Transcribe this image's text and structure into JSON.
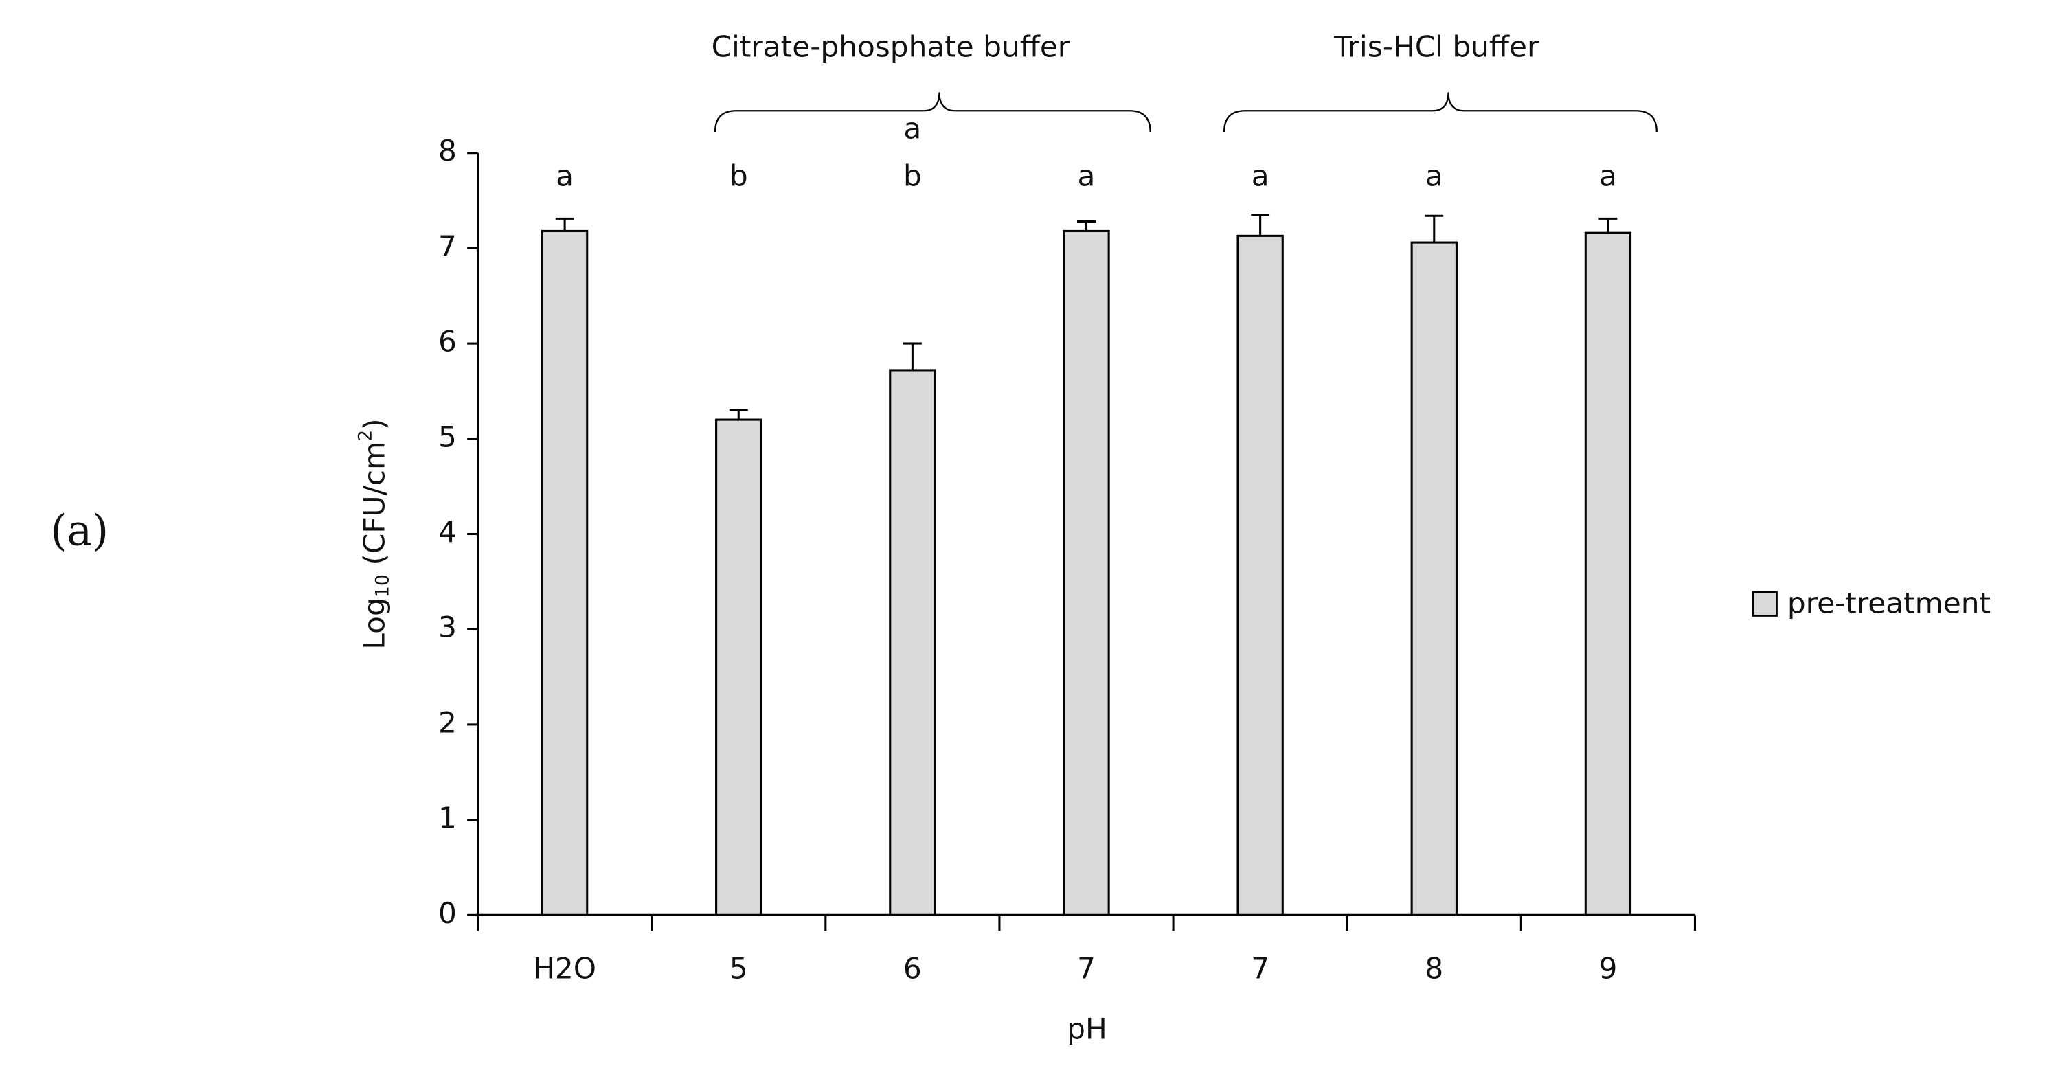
{
  "chart_data": {
    "type": "bar",
    "panel_label": "(a)",
    "group_labels": [
      "Citrate-phosphate buffer",
      "Tris-HCl buffer"
    ],
    "xlabel": "pH",
    "ylabel": {
      "base": "Log",
      "sub": "10",
      "mid": "  (CFU/cm",
      "sup": "2",
      "end": ")"
    },
    "categories": [
      "H2O",
      "5",
      "6",
      "7",
      "7",
      "8",
      "9"
    ],
    "series": [
      {
        "name": "pre-treatment",
        "color": "#d9d9d9",
        "values": [
          7.18,
          5.2,
          5.72,
          7.18,
          7.13,
          7.06,
          7.16
        ],
        "errors": [
          0.13,
          0.1,
          0.28,
          0.1,
          0.22,
          0.28,
          0.15
        ],
        "letters": [
          [
            "a"
          ],
          [
            "b"
          ],
          [
            "a",
            "b"
          ],
          [
            "a"
          ],
          [
            "a"
          ],
          [
            "a"
          ],
          [
            "a"
          ]
        ]
      }
    ],
    "ylim": [
      0,
      8
    ],
    "yticks": [
      0,
      1,
      2,
      3,
      4,
      5,
      6,
      7,
      8
    ],
    "legend": "right"
  }
}
